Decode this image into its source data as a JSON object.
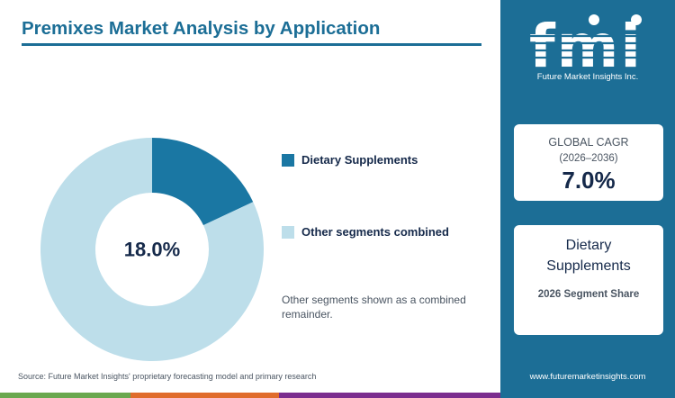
{
  "header": {
    "title": "Premixes Market Analysis by Application"
  },
  "chart_data": {
    "type": "pie",
    "title": "Premixes Market Analysis by Application",
    "categories": [
      "Dietary Supplements",
      "Other segments combined"
    ],
    "values": [
      18.0,
      82.0
    ],
    "unit": "%",
    "center_label": "18.0%",
    "colors": [
      "#1a77a3",
      "#bddeea"
    ],
    "legend_position": "right"
  },
  "note": "Other segments shown as a combined remainder.",
  "source": "Source: Future Market Insights' proprietary forecasting model and primary research",
  "sidebar": {
    "logo_text": "fmi",
    "logo_tagline": "Future Market Insights Inc.",
    "cagr_card": {
      "label": "GLOBAL CAGR",
      "period": "(2026–2036)",
      "value": "7.0%"
    },
    "segment_card": {
      "name": "Dietary Supplements",
      "subtitle": "2026 Segment Share"
    },
    "website": "www.futuremarketinsights.com"
  },
  "colors": {
    "brand": "#1c6e96",
    "dark_text": "#15294a",
    "bottom_bar": [
      "#6aa84f",
      "#e06c2c",
      "#7b2d8e",
      "#1c6e96"
    ]
  }
}
